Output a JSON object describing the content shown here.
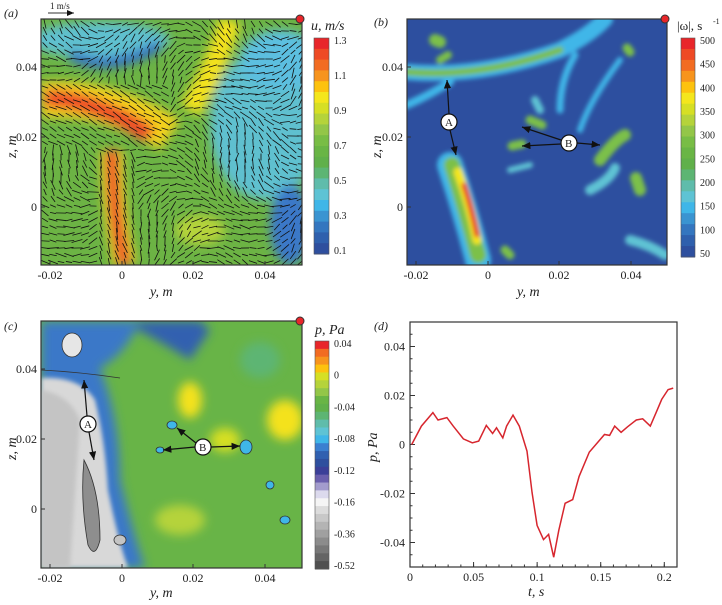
{
  "figure": {
    "panels": [
      {
        "label": "(a)",
        "xlabel": "y, m",
        "ylabel": "z, m",
        "colorbar_title": "u, m/s",
        "xticks": [
          "-0.02",
          "0",
          "0.02",
          "0.04"
        ],
        "yticks": [
          "0.04",
          "0.02",
          "0"
        ],
        "colorbar_ticks": [
          "1.3",
          "1.1",
          "0.9",
          "0.7",
          "0.5",
          "0.3",
          "0.1"
        ],
        "scale_arrow_label": "1 m/s"
      },
      {
        "label": "(b)",
        "xlabel": "y, m",
        "ylabel": "z, m",
        "colorbar_title": "|ω|, s",
        "colorbar_title_sup": "-1",
        "xticks": [
          "-0.02",
          "0",
          "0.02",
          "0.04"
        ],
        "yticks": [
          "0.04",
          "0.02",
          "0"
        ],
        "colorbar_ticks": [
          "500",
          "450",
          "400",
          "350",
          "300",
          "250",
          "200",
          "150",
          "100",
          "50"
        ],
        "annotations": [
          "A",
          "B"
        ]
      },
      {
        "label": "(c)",
        "xlabel": "y, m",
        "ylabel": "z, m",
        "colorbar_title": "p, Pa",
        "xticks": [
          "-0.02",
          "0",
          "0.02",
          "0.04"
        ],
        "yticks": [
          "0.04",
          "0.02",
          "0"
        ],
        "colorbar_ticks": [
          "0.04",
          "0",
          "-0.04",
          "-0.08",
          "-0.12",
          "-0.16",
          "-0.36",
          "-0.52"
        ],
        "annotations": [
          "A",
          "B"
        ]
      },
      {
        "label": "(d)"
      }
    ],
    "colormaps": {
      "u": [
        "#e8262a",
        "#ee4a25",
        "#f26c22",
        "#f7941d",
        "#fdc20e",
        "#f4e61c",
        "#d6df24",
        "#b5d33a",
        "#93c648",
        "#78bd45",
        "#69b545",
        "#60b04a",
        "#5db573",
        "#5fbcab",
        "#5ec3d4",
        "#3fb6e8",
        "#3a94d1",
        "#3476bf",
        "#2f60ad",
        "#2e4f9e"
      ],
      "omega": [
        "#e8262a",
        "#ee4a25",
        "#f26c22",
        "#f7941d",
        "#fdc20e",
        "#f4e61c",
        "#d6df24",
        "#b5d33a",
        "#93c648",
        "#78bd45",
        "#69b545",
        "#60b04a",
        "#5db573",
        "#5fbcab",
        "#5ec3d4",
        "#3fb6e8",
        "#3a94d1",
        "#3476bf",
        "#2f60ad",
        "#2e4f9e"
      ],
      "p": [
        "#e8262a",
        "#f26c22",
        "#f7941d",
        "#fdc20e",
        "#d6df24",
        "#b5d33a",
        "#93c648",
        "#69b545",
        "#60b04a",
        "#5db573",
        "#5fbcab",
        "#5ec3d4",
        "#3fb6e8",
        "#3a7fd0",
        "#3060b0",
        "#2e4f9e",
        "#3b3f98",
        "#6a5fad",
        "#a39ccd",
        "#dcdaed",
        "#f5f5f5",
        "#dcdcdc",
        "#c8c8c8",
        "#b4b4b4",
        "#a0a0a0",
        "#8c8c8c",
        "#787878",
        "#646464",
        "#505050"
      ]
    },
    "marker_color": "#e8262a"
  },
  "chart_data": {
    "type": "line",
    "title": "",
    "xlabel": "t, s",
    "ylabel": "p, Pa",
    "xlim": [
      0,
      0.21
    ],
    "ylim": [
      -0.05,
      0.05
    ],
    "xticks": [
      "0",
      "0.05",
      "0.1",
      "0.15",
      "0.2"
    ],
    "yticks": [
      "0.04",
      "0.02",
      "0",
      "-0.02",
      "-0.04"
    ],
    "grid": false,
    "series": [
      {
        "name": "p",
        "color": "#d7262e",
        "x": [
          0.0013,
          0.009,
          0.018,
          0.022,
          0.029,
          0.034,
          0.042,
          0.049,
          0.054,
          0.06,
          0.065,
          0.068,
          0.073,
          0.076,
          0.081,
          0.086,
          0.092,
          0.096,
          0.1,
          0.105,
          0.109,
          0.113,
          0.117,
          0.122,
          0.128,
          0.133,
          0.141,
          0.153,
          0.157,
          0.161,
          0.166,
          0.171,
          0.178,
          0.183,
          0.189,
          0.194,
          0.198,
          0.203,
          0.207
        ],
        "y": [
          0,
          0.0075,
          0.013,
          0.01,
          0.011,
          0.0075,
          0.0023,
          0.0007,
          0.0014,
          0.0078,
          0.0045,
          0.0068,
          0.0027,
          0.0075,
          0.012,
          0.0075,
          -0.0027,
          -0.0197,
          -0.033,
          -0.0388,
          -0.0367,
          -0.046,
          -0.035,
          -0.024,
          -0.0225,
          -0.013,
          -0.0031,
          0.0041,
          0.0037,
          0.0075,
          0.005,
          0.0072,
          0.01,
          0.0105,
          0.0075,
          0.0136,
          0.0184,
          0.0224,
          0.023
        ]
      }
    ]
  }
}
